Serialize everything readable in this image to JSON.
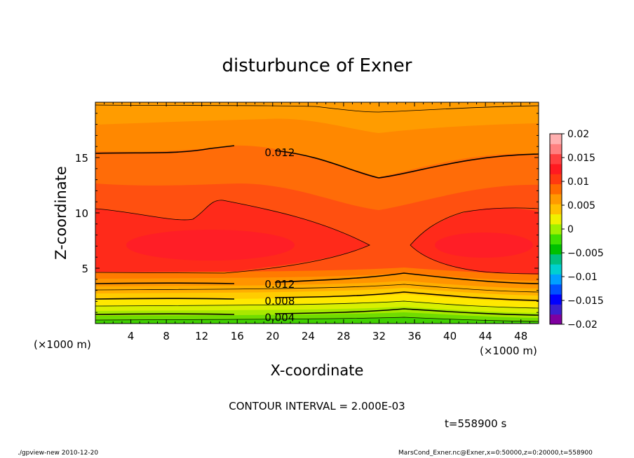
{
  "chart_data": {
    "type": "heatmap",
    "title": "disturbunce of Exner",
    "xlabel": "X-coordinate",
    "ylabel": "Z-coordinate",
    "x_unit": "(×1000 m)",
    "y_unit": "(×1000 m)",
    "xlim": [
      0,
      50
    ],
    "ylim": [
      0,
      20
    ],
    "x_ticks": [
      4,
      8,
      12,
      16,
      20,
      24,
      28,
      32,
      36,
      40,
      44,
      48
    ],
    "y_ticks": [
      5,
      10,
      15
    ],
    "colorbar": {
      "ticks": [
        "0.02",
        "0.015",
        "0.01",
        "0.005",
        "0",
        "−0.005",
        "−0.01",
        "−0.015",
        "−0.02"
      ],
      "tick_values": [
        0.02,
        0.015,
        0.01,
        0.005,
        0,
        -0.005,
        -0.01,
        -0.015,
        -0.02
      ],
      "range": [
        -0.02,
        0.02
      ],
      "colors": [
        "#7f00a0",
        "#3b1fd0",
        "#0000ff",
        "#0050ff",
        "#00a0ff",
        "#00d0d0",
        "#00c080",
        "#00c000",
        "#40e000",
        "#a0f000",
        "#f0f000",
        "#ffc000",
        "#ff9a00",
        "#ff6a00",
        "#ff3a10",
        "#ff1a20",
        "#ff4040",
        "#ff8080",
        "#ffb0b0"
      ]
    },
    "contour_labels": [
      {
        "text": "0.012",
        "x": 20.8,
        "z": 15.5
      },
      {
        "text": "0.012",
        "x": 20.8,
        "z": 3.6
      },
      {
        "text": "0.008",
        "x": 20.8,
        "z": 2.1
      },
      {
        "text": "0.004",
        "x": 20.8,
        "z": 0.6
      }
    ],
    "contour_interval": "CONTOUR INTERVAL = 2.000E-03",
    "time": "t=558900 s"
  },
  "footer": {
    "left": "./gpview-new   2010-12-20",
    "right": "MarsCond_Exner.nc@Exner,x=0:50000,z=0:20000,t=558900"
  }
}
